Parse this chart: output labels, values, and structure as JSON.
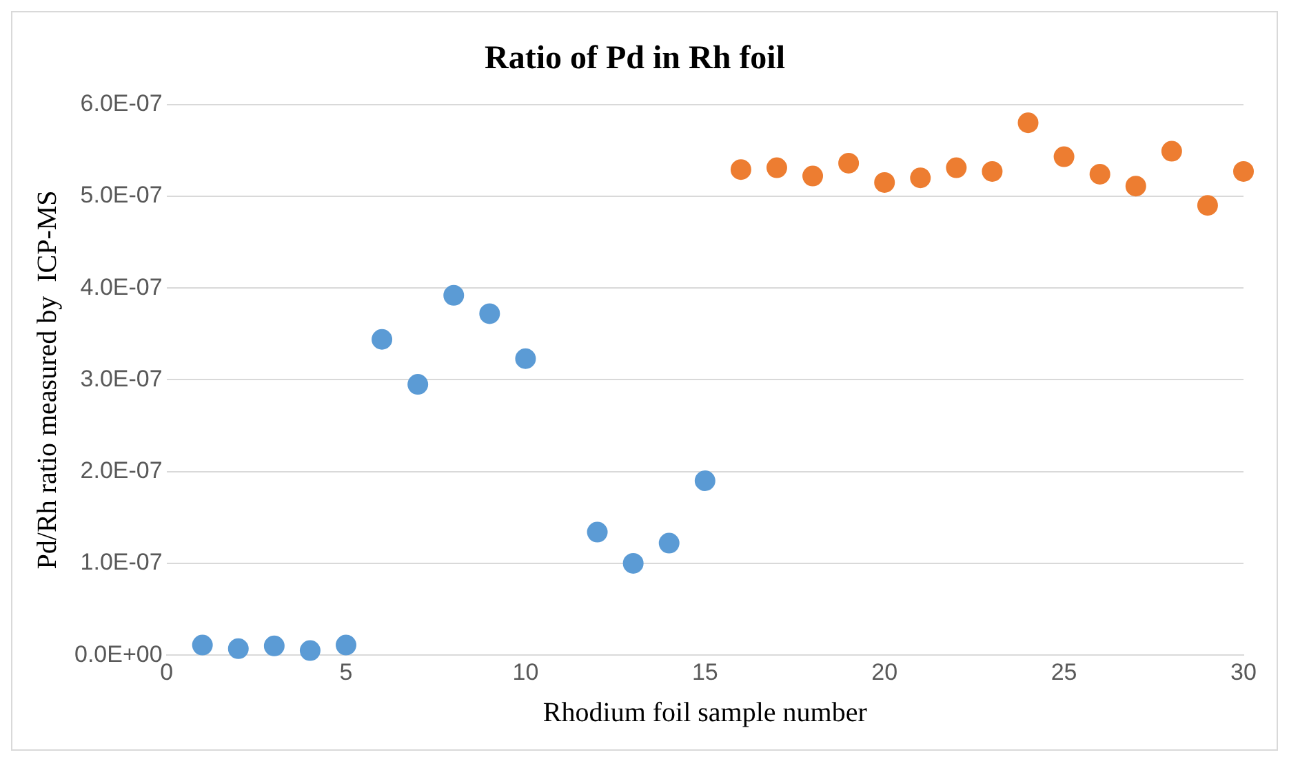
{
  "chart_data": {
    "type": "scatter",
    "title": "Ratio of Pd in Rh foil",
    "xlabel": "Rhodium foil sample number",
    "ylabel": "Pd/Rh ratio measured by  ICP-MS",
    "series": [
      {
        "color": "#5b9bd5",
        "x": [
          1,
          2,
          3,
          4,
          5,
          6,
          7,
          8,
          9,
          10,
          12,
          13,
          14,
          15
        ],
        "values": [
          1.1e-08,
          7e-09,
          1e-08,
          5e-09,
          1.1e-08,
          3.44e-07,
          2.95e-07,
          3.92e-07,
          3.72e-07,
          3.23e-07,
          1.34e-07,
          1e-07,
          1.22e-07,
          1.9e-07
        ]
      },
      {
        "color": "#ed7d31",
        "x": [
          16,
          17,
          18,
          19,
          20,
          21,
          22,
          23,
          24,
          25,
          26,
          27,
          28,
          29,
          30
        ],
        "values": [
          5.29e-07,
          5.31e-07,
          5.22e-07,
          5.36e-07,
          5.15e-07,
          5.2e-07,
          5.31e-07,
          5.27e-07,
          5.8e-07,
          5.43e-07,
          5.24e-07,
          5.11e-07,
          5.49e-07,
          4.9e-07,
          5.27e-07
        ]
      }
    ],
    "xlim": [
      0,
      30
    ],
    "xticks": [
      0,
      5,
      10,
      15,
      20,
      25,
      30
    ],
    "ylim": [
      0,
      6e-07
    ],
    "yticks": [
      {
        "value": 0,
        "label": "0.0E+00"
      },
      {
        "value": 1e-07,
        "label": "1.0E-07"
      },
      {
        "value": 2e-07,
        "label": "2.0E-07"
      },
      {
        "value": 3e-07,
        "label": "3.0E-07"
      },
      {
        "value": 4e-07,
        "label": "4.0E-07"
      },
      {
        "value": 5e-07,
        "label": "5.0E-07"
      },
      {
        "value": 6e-07,
        "label": "6.0E-07"
      }
    ],
    "grid": "y",
    "legend": false,
    "marker": "circle"
  }
}
